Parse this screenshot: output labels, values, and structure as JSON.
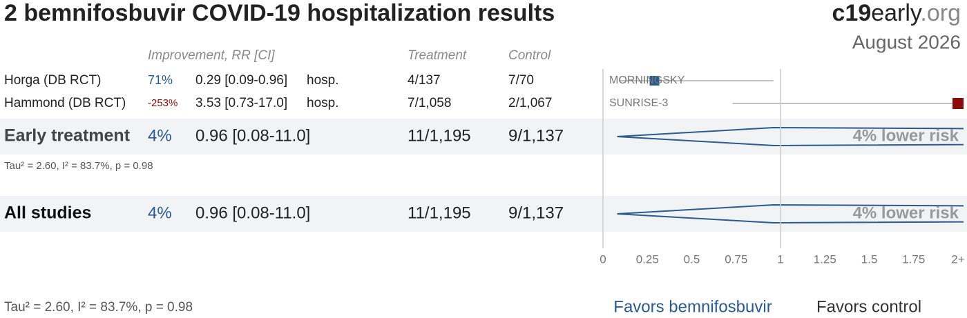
{
  "chart_data": {
    "type": "forest",
    "title": "2 bemnifosbuvir COVID-19 hospitalization results",
    "brand": [
      "c19",
      "early",
      ".org"
    ],
    "date": "August 2026",
    "headers": {
      "improvement": "Improvement, RR [CI]",
      "treatment": "Treatment",
      "control": "Control"
    },
    "studies": [
      {
        "name": "Horga (DB RCT)",
        "improvement": "71%",
        "ci_label": "0.29 [0.09-0.96]",
        "outcome": "hosp.",
        "treatment": "4/137",
        "control": "7/70",
        "trial": "MORNINGSKY",
        "rr": 0.29,
        "lo": 0.09,
        "hi": 0.96,
        "color": "#2a5b8f"
      },
      {
        "name": "Hammond (DB RCT)",
        "improvement": "-253%",
        "ci_label": "3.53 [0.73-17.0]",
        "outcome": "hosp.",
        "treatment": "7/1,058",
        "control": "2/1,067",
        "trial": "SUNRISE-3",
        "rr": 3.53,
        "lo": 0.73,
        "hi": 17.0,
        "color": "#8b0a0a"
      }
    ],
    "summaries": [
      {
        "name": "Early treatment",
        "improvement": "4%",
        "ci_label": "0.96 [0.08-11.0]",
        "treatment": "11/1,195",
        "control": "9/1,137",
        "effect_label": "4% lower risk",
        "rr": 0.96,
        "lo": 0.08,
        "hi": 11.0,
        "stats": "Tau² = 2.60, I² = 83.7%, p = 0.98"
      },
      {
        "name": "All studies",
        "improvement": "4%",
        "ci_label": "0.96 [0.08-11.0]",
        "treatment": "11/1,195",
        "control": "9/1,137",
        "effect_label": "4% lower risk",
        "rr": 0.96,
        "lo": 0.08,
        "hi": 11.0
      }
    ],
    "diamond_color": "#2a5b8f",
    "xlim": [
      0,
      2
    ],
    "xticks": [
      0,
      0.25,
      0.5,
      0.75,
      1,
      1.25,
      1.5,
      1.75,
      {
        "value": 2,
        "label": "2+"
      }
    ],
    "null_line": 1,
    "footer_stats": "Tau² = 2.60, I² = 83.7%, p = 0.98",
    "favors": [
      "Favors bemnifosbuvir",
      "Favors control"
    ]
  }
}
